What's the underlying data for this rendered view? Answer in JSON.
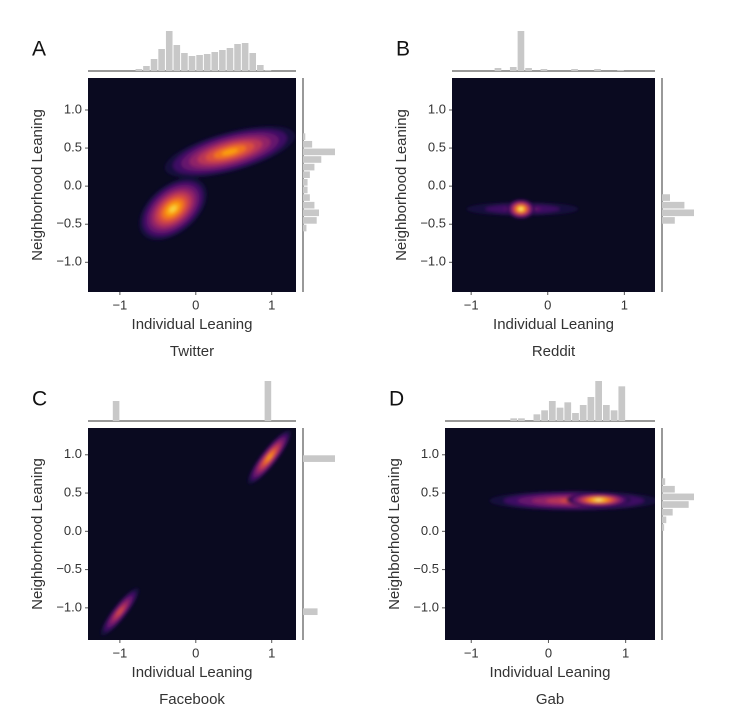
{
  "chart_data": [
    {
      "type": "kde",
      "panel": "A",
      "title": "Twitter",
      "xlabel": "Individual Leaning",
      "ylabel": "Neighborhood Leaning",
      "xlim": [
        -1.42,
        1.32
      ],
      "ylim": [
        -1.39,
        1.42
      ],
      "xticks": [
        {
          "value": -1,
          "label": "−1"
        },
        0,
        1
      ],
      "yticks": [
        {
          "value": -1,
          "label": "−1.0"
        },
        {
          "value": -0.5,
          "label": "−0.5"
        },
        {
          "value": 0,
          "label": "0.0"
        },
        0.5,
        {
          "value": 1,
          "label": "1.0"
        }
      ],
      "background": "#0a0a20",
      "hist_color": "#c8c8c8",
      "colors": [
        "#1b0c41",
        "#420a68",
        "#6a176e",
        "#932667",
        "#bc3754",
        "#dd513a",
        "#f37819",
        "#fca50a",
        "#f6d746",
        "#fcffa4"
      ],
      "density_peaks": [
        {
          "x": -0.3,
          "y": -0.3,
          "sx": 0.2,
          "sy": 0.12,
          "angle": 40,
          "weight": 0.9
        },
        {
          "x": 0.45,
          "y": 0.45,
          "sx": 0.34,
          "sy": 0.1,
          "angle": 15,
          "weight": 0.8
        }
      ],
      "x_hist": {
        "bins": [
          -1.1,
          -1.0,
          -0.9,
          -0.8,
          -0.7,
          -0.6,
          -0.5,
          -0.4,
          -0.3,
          -0.2,
          -0.1,
          0.0,
          0.1,
          0.2,
          0.3,
          0.4,
          0.5,
          0.6,
          0.7,
          0.8,
          0.9,
          1.0,
          1.1
        ],
        "counts": [
          0,
          0,
          0,
          2,
          5,
          12,
          22,
          40,
          26,
          18,
          15,
          16,
          17,
          19,
          21,
          23,
          27,
          28,
          18,
          6,
          1,
          0
        ]
      },
      "y_hist": {
        "bins": [
          -1.1,
          -1.0,
          -0.9,
          -0.8,
          -0.7,
          -0.6,
          -0.5,
          -0.4,
          -0.3,
          -0.2,
          -0.1,
          0.0,
          0.1,
          0.2,
          0.3,
          0.4,
          0.5,
          0.6,
          0.7,
          0.8,
          0.9,
          1.0,
          1.1
        ],
        "counts": [
          0,
          0,
          0,
          0,
          0,
          3,
          12,
          14,
          10,
          6,
          4,
          4,
          6,
          10,
          16,
          28,
          8,
          2,
          0,
          0,
          0,
          0
        ]
      }
    },
    {
      "type": "kde",
      "panel": "B",
      "title": "Reddit",
      "xlabel": "Individual Leaning",
      "ylabel": "Neighborhood Leaning",
      "xlim": [
        -1.25,
        1.4
      ],
      "ylim": [
        -1.39,
        1.42
      ],
      "xticks": [
        {
          "value": -1,
          "label": "−1"
        },
        0,
        1
      ],
      "yticks": [
        {
          "value": -1,
          "label": "−1.0"
        },
        {
          "value": -0.5,
          "label": "−0.5"
        },
        {
          "value": 0,
          "label": "0.0"
        },
        0.5,
        {
          "value": 1,
          "label": "1.0"
        }
      ],
      "background": "#0a0a20",
      "hist_color": "#c8c8c8",
      "colors": [
        "#1b0c41",
        "#420a68",
        "#6a176e",
        "#932667",
        "#bc3754",
        "#dd513a",
        "#f37819",
        "#fca50a",
        "#f6d746",
        "#fcffa4"
      ],
      "density_peaks": [
        {
          "x": -0.33,
          "y": -0.3,
          "sx": 0.28,
          "sy": 0.035,
          "angle": 0,
          "weight": 0.3
        },
        {
          "x": -0.35,
          "y": -0.3,
          "sx": 0.07,
          "sy": 0.05,
          "angle": 0,
          "weight": 1.0
        }
      ],
      "x_hist": {
        "bins": [
          -1.1,
          -1.0,
          -0.9,
          -0.8,
          -0.7,
          -0.6,
          -0.5,
          -0.4,
          -0.3,
          -0.2,
          -0.1,
          0.0,
          0.1,
          0.2,
          0.3,
          0.4,
          0.5,
          0.6,
          0.7,
          0.8,
          0.9,
          1.0,
          1.1
        ],
        "counts": [
          0,
          0,
          0,
          0,
          3,
          0,
          4,
          40,
          3,
          0,
          2,
          0,
          0,
          0,
          2,
          0,
          0,
          2,
          0,
          0,
          1,
          0
        ]
      },
      "y_hist": {
        "bins": [
          -1.1,
          -1.0,
          -0.9,
          -0.8,
          -0.7,
          -0.6,
          -0.5,
          -0.4,
          -0.3,
          -0.2,
          -0.1,
          0.0,
          0.1,
          0.2,
          0.3,
          0.4,
          0.5,
          0.6,
          0.7,
          0.8,
          0.9,
          1.0,
          1.1
        ],
        "counts": [
          0,
          0,
          0,
          0,
          0,
          0,
          8,
          20,
          14,
          5,
          0,
          0,
          0,
          0,
          0,
          0,
          0,
          0,
          0,
          0,
          0,
          0
        ]
      }
    },
    {
      "type": "kde",
      "panel": "C",
      "title": "Facebook",
      "xlabel": "Individual Leaning",
      "ylabel": "Neighborhood Leaning",
      "xlim": [
        -1.42,
        1.32
      ],
      "ylim": [
        -1.42,
        1.35
      ],
      "xticks": [
        {
          "value": -1,
          "label": "−1"
        },
        0,
        1
      ],
      "yticks": [
        {
          "value": -1,
          "label": "−1.0"
        },
        {
          "value": -0.5,
          "label": "−0.5"
        },
        {
          "value": 0,
          "label": "0.0"
        },
        0.5,
        {
          "value": 1,
          "label": "1.0"
        }
      ],
      "background": "#0a0a20",
      "hist_color": "#c8c8c8",
      "colors": [
        "#1b0c41",
        "#420a68",
        "#6a176e",
        "#932667",
        "#bc3754",
        "#dd513a",
        "#f37819",
        "#fca50a",
        "#f6d746",
        "#fcffa4"
      ],
      "density_peaks": [
        {
          "x": 0.97,
          "y": 0.97,
          "sx": 0.17,
          "sy": 0.04,
          "angle": 52,
          "weight": 0.8
        },
        {
          "x": -1.0,
          "y": -1.05,
          "sx": 0.15,
          "sy": 0.035,
          "angle": 52,
          "weight": 0.55
        }
      ],
      "x_hist": {
        "bins": [
          -1.1,
          -1.0,
          -0.9,
          -0.8,
          -0.7,
          -0.6,
          -0.5,
          -0.4,
          -0.3,
          -0.2,
          -0.1,
          0.0,
          0.1,
          0.2,
          0.3,
          0.4,
          0.5,
          0.6,
          0.7,
          0.8,
          0.9,
          1.0,
          1.1
        ],
        "counts": [
          20,
          0,
          0,
          0,
          0,
          0,
          0,
          0,
          0,
          0,
          0,
          0,
          0,
          0,
          0,
          0,
          0,
          0,
          0,
          0,
          40,
          0
        ]
      },
      "y_hist": {
        "bins": [
          -1.1,
          -1.0,
          -0.9,
          -0.8,
          -0.7,
          -0.6,
          -0.5,
          -0.4,
          -0.3,
          -0.2,
          -0.1,
          0.0,
          0.1,
          0.2,
          0.3,
          0.4,
          0.5,
          0.6,
          0.7,
          0.8,
          0.9,
          1.0,
          1.1
        ],
        "counts": [
          15,
          0,
          0,
          0,
          0,
          0,
          0,
          0,
          0,
          0,
          0,
          0,
          0,
          0,
          0,
          0,
          0,
          0,
          0,
          0,
          33,
          0
        ]
      }
    },
    {
      "type": "kde",
      "panel": "D",
      "title": "Gab",
      "xlabel": "Individual Leaning",
      "ylabel": "Neighborhood Leaning",
      "xlim": [
        -1.34,
        1.38
      ],
      "ylim": [
        -1.42,
        1.35
      ],
      "xticks": [
        {
          "value": -1,
          "label": "−1"
        },
        0,
        1
      ],
      "yticks": [
        {
          "value": -1,
          "label": "−1.0"
        },
        {
          "value": -0.5,
          "label": "−0.5"
        },
        {
          "value": 0,
          "label": "0.0"
        },
        0.5,
        {
          "value": 1,
          "label": "1.0"
        }
      ],
      "background": "#0a0a20",
      "hist_color": "#c8c8c8",
      "colors": [
        "#1b0c41",
        "#420a68",
        "#6a176e",
        "#932667",
        "#bc3754",
        "#dd513a",
        "#f37819",
        "#fca50a",
        "#f6d746",
        "#fcffa4"
      ],
      "density_peaks": [
        {
          "x": 0.33,
          "y": 0.4,
          "sx": 0.42,
          "sy": 0.05,
          "angle": 0,
          "weight": 0.55
        },
        {
          "x": 0.65,
          "y": 0.41,
          "sx": 0.16,
          "sy": 0.035,
          "angle": 0,
          "weight": 1.0
        }
      ],
      "x_hist": {
        "bins": [
          -1.1,
          -1.0,
          -0.9,
          -0.8,
          -0.7,
          -0.6,
          -0.5,
          -0.4,
          -0.3,
          -0.2,
          -0.1,
          0.0,
          0.1,
          0.2,
          0.3,
          0.4,
          0.5,
          0.6,
          0.7,
          0.8,
          0.9,
          1.0,
          1.1
        ],
        "counts": [
          0,
          0,
          0,
          0,
          0,
          0,
          2,
          2,
          0,
          5,
          8,
          15,
          10,
          14,
          6,
          12,
          18,
          30,
          12,
          8,
          26,
          0
        ]
      },
      "y_hist": {
        "bins": [
          -1.1,
          -1.0,
          -0.9,
          -0.8,
          -0.7,
          -0.6,
          -0.5,
          -0.4,
          -0.3,
          -0.2,
          -0.1,
          0.0,
          0.1,
          0.2,
          0.3,
          0.4,
          0.5,
          0.6,
          0.7,
          0.8,
          0.9,
          1.0,
          1.1
        ],
        "counts": [
          0,
          0,
          0,
          0,
          0,
          0,
          0,
          0,
          0,
          0,
          0,
          2,
          4,
          10,
          25,
          30,
          12,
          3,
          0,
          0,
          0,
          0
        ]
      }
    }
  ]
}
